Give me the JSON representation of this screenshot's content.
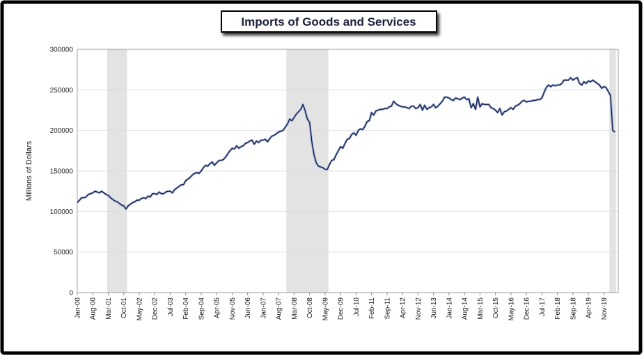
{
  "chart_data": {
    "type": "line",
    "title": "Imports of Goods and Services",
    "y_label": "Millions of Dollars",
    "ylim": [
      0,
      300000
    ],
    "yticks": [
      0,
      50000,
      100000,
      150000,
      200000,
      250000,
      300000
    ],
    "grid": true,
    "shaded_ranges": [
      [
        14,
        22
      ],
      [
        95,
        113
      ],
      [
        241,
        243
      ]
    ],
    "categories": [
      "Jan-00",
      null,
      null,
      null,
      null,
      null,
      null,
      "Aug-00",
      null,
      null,
      null,
      null,
      null,
      null,
      "Mar-01",
      null,
      null,
      null,
      null,
      null,
      null,
      "Oct-01",
      null,
      null,
      null,
      null,
      null,
      null,
      "May-02",
      null,
      null,
      null,
      null,
      null,
      null,
      "Dec-02",
      null,
      null,
      null,
      null,
      null,
      null,
      "Jul-03",
      null,
      null,
      null,
      null,
      null,
      null,
      "Feb-04",
      null,
      null,
      null,
      null,
      null,
      null,
      "Sep-04",
      null,
      null,
      null,
      null,
      null,
      null,
      "Apr-05",
      null,
      null,
      null,
      null,
      null,
      null,
      "Nov-05",
      null,
      null,
      null,
      null,
      null,
      null,
      "Jun-06",
      null,
      null,
      null,
      null,
      null,
      null,
      "Jan-07",
      null,
      null,
      null,
      null,
      null,
      null,
      "Aug-07",
      null,
      null,
      null,
      null,
      null,
      null,
      "Mar-08",
      null,
      null,
      null,
      null,
      null,
      null,
      "Oct-08",
      null,
      null,
      null,
      null,
      null,
      null,
      "May-09",
      null,
      null,
      null,
      null,
      null,
      null,
      "Dec-09",
      null,
      null,
      null,
      null,
      null,
      null,
      "Jul-10",
      null,
      null,
      null,
      null,
      null,
      null,
      "Feb-11",
      null,
      null,
      null,
      null,
      null,
      null,
      "Sep-11",
      null,
      null,
      null,
      null,
      null,
      null,
      "Apr-12",
      null,
      null,
      null,
      null,
      null,
      null,
      "Nov-12",
      null,
      null,
      null,
      null,
      null,
      null,
      "Jun-13",
      null,
      null,
      null,
      null,
      null,
      null,
      "Jan-14",
      null,
      null,
      null,
      null,
      null,
      null,
      "Aug-14",
      null,
      null,
      null,
      null,
      null,
      null,
      "Mar-15",
      null,
      null,
      null,
      null,
      null,
      null,
      "Oct-15",
      null,
      null,
      null,
      null,
      null,
      null,
      "May-16",
      null,
      null,
      null,
      null,
      null,
      null,
      "Dec-16",
      null,
      null,
      null,
      null,
      null,
      null,
      "Jul-17",
      null,
      null,
      null,
      null,
      null,
      null,
      "Feb-18",
      null,
      null,
      null,
      null,
      null,
      null,
      "Sep-18",
      null,
      null,
      null,
      null,
      null,
      null,
      "Apr-19",
      null,
      null,
      null,
      null,
      null,
      null,
      "Nov-19",
      null,
      null,
      null,
      null,
      null
    ],
    "color": "#1b1f3b",
    "values": [
      111000,
      114000,
      117000,
      117000,
      118000,
      121000,
      122000,
      123000,
      125000,
      124000,
      123000,
      125000,
      123000,
      121000,
      120000,
      117000,
      115000,
      113000,
      112000,
      110000,
      108000,
      107000,
      103000,
      107000,
      109000,
      111000,
      112000,
      114000,
      114000,
      116000,
      117000,
      116000,
      119000,
      118000,
      122000,
      122000,
      121000,
      124000,
      122000,
      122000,
      124000,
      125000,
      125000,
      123000,
      127000,
      129000,
      131000,
      133000,
      133000,
      138000,
      140000,
      142000,
      145000,
      147000,
      148000,
      147000,
      150000,
      154000,
      157000,
      156000,
      159000,
      161000,
      157000,
      160000,
      163000,
      163000,
      164000,
      167000,
      171000,
      175000,
      178000,
      177000,
      181000,
      178000,
      180000,
      181000,
      184000,
      185000,
      187000,
      188000,
      183000,
      187000,
      185000,
      188000,
      188000,
      189000,
      186000,
      190000,
      193000,
      194000,
      196000,
      198000,
      199000,
      200000,
      204000,
      208000,
      214000,
      212000,
      216000,
      220000,
      223000,
      226000,
      232000,
      224000,
      214000,
      210000,
      186000,
      170000,
      160000,
      156000,
      155000,
      154000,
      152000,
      152000,
      158000,
      163000,
      164000,
      170000,
      175000,
      180000,
      178000,
      184000,
      189000,
      190000,
      195000,
      197000,
      194000,
      200000,
      202000,
      201000,
      205000,
      211000,
      212000,
      222000,
      219000,
      224000,
      225000,
      226000,
      226000,
      227000,
      227000,
      229000,
      230000,
      236000,
      233000,
      231000,
      230000,
      229000,
      229000,
      228000,
      227000,
      230000,
      230000,
      227000,
      228000,
      232000,
      225000,
      231000,
      226000,
      228000,
      229000,
      232000,
      228000,
      230000,
      233000,
      236000,
      241000,
      241000,
      240000,
      238000,
      237000,
      240000,
      239000,
      238000,
      240000,
      241000,
      238000,
      239000,
      228000,
      233000,
      226000,
      241000,
      229000,
      233000,
      232000,
      232000,
      232000,
      228000,
      227000,
      225000,
      222000,
      227000,
      219000,
      223000,
      224000,
      226000,
      228000,
      226000,
      230000,
      231000,
      233000,
      236000,
      237000,
      235000,
      236000,
      236000,
      237000,
      237000,
      238000,
      238000,
      240000,
      247000,
      253000,
      256000,
      254000,
      256000,
      255000,
      256000,
      256000,
      258000,
      262000,
      262000,
      262000,
      265000,
      262000,
      264000,
      265000,
      258000,
      256000,
      260000,
      258000,
      261000,
      260000,
      262000,
      260000,
      258000,
      256000,
      252000,
      254000,
      253000,
      248000,
      243000,
      200000,
      198000
    ]
  }
}
